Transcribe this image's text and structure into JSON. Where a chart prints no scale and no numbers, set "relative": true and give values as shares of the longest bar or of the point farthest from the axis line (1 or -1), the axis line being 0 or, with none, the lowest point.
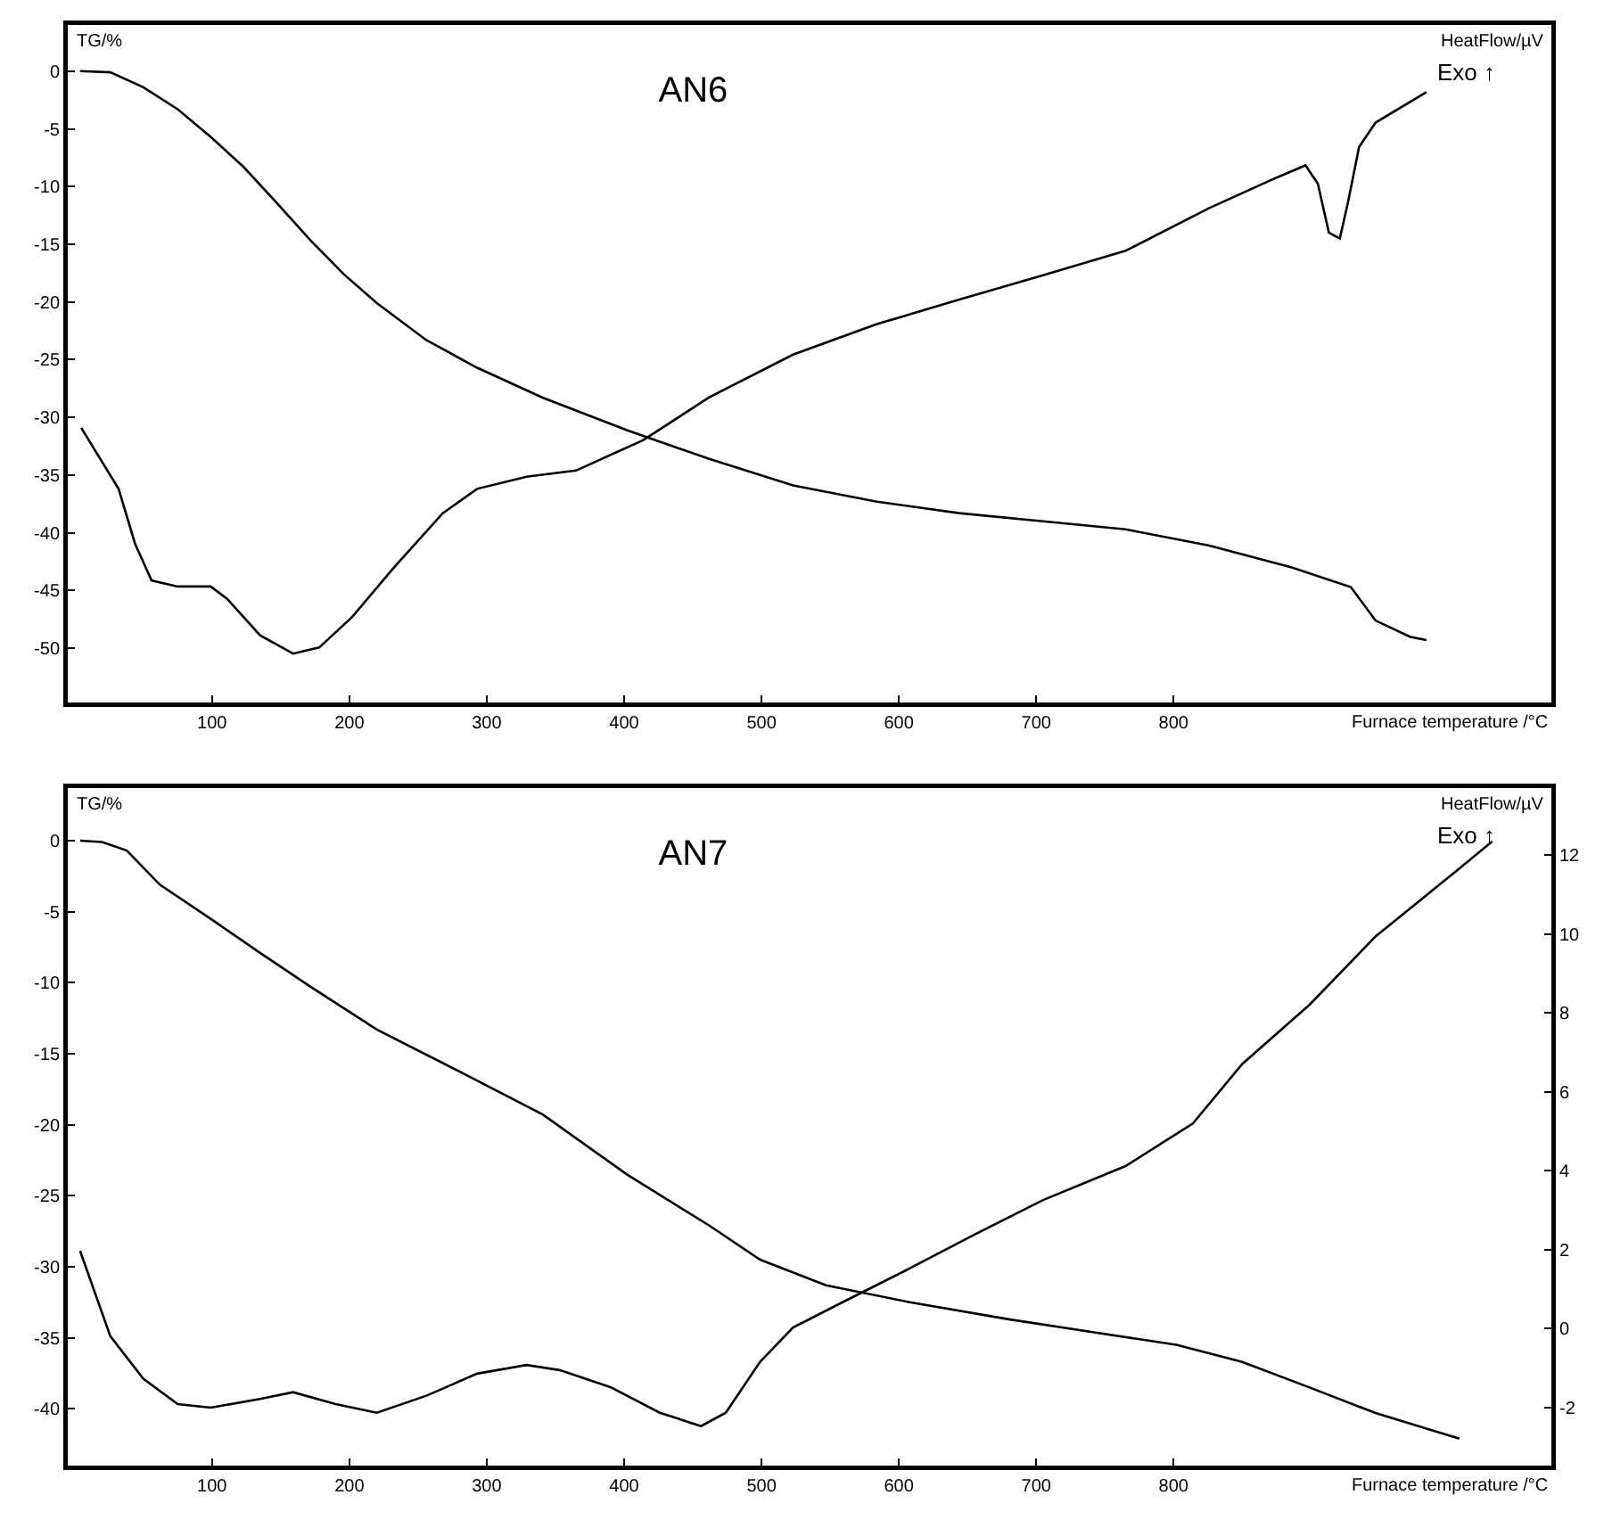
{
  "chart_data": [
    {
      "type": "line",
      "title": "AN6",
      "xlabel": "Furnace temperature /°C",
      "ylabel": "TG/%",
      "y2label": "HeatFlow/µV",
      "annotations": [
        "Exo ↑"
      ],
      "xlim": [
        -5,
        1075
      ],
      "xticks": [
        100,
        200,
        300,
        400,
        500,
        600,
        700,
        800
      ],
      "ylim": [
        -54.7,
        4
      ],
      "yticks": [
        0,
        -5,
        -10,
        -15,
        -20,
        -25,
        -30,
        -35,
        -40,
        -45,
        -50
      ],
      "marker": "none",
      "line_style": "solid",
      "series": [
        {
          "color": "#000000",
          "x": [
            4,
            26,
            50,
            75,
            99,
            123,
            147,
            172,
            196,
            220,
            256,
            293,
            341,
            402,
            462,
            523,
            584,
            644,
            705,
            765,
            826,
            886,
            929,
            947,
            972,
            984
          ],
          "values": [
            0,
            -0.1,
            -1.4,
            -3.3,
            -5.7,
            -8.3,
            -11.4,
            -14.7,
            -17.6,
            -20.1,
            -23.3,
            -25.7,
            -28.3,
            -31.1,
            -33.6,
            -35.9,
            -37.3,
            -38.3,
            -39,
            -39.7,
            -41.1,
            -43,
            -44.7,
            -47.6,
            -49,
            -49.3
          ]
        }
      ]
    },
    {
      "type": "line",
      "relative": true,
      "xlim": [
        -5,
        1075
      ],
      "tick_labels": false,
      "marker": "none",
      "line_style": "solid",
      "series": [
        {
          "color": "#000000",
          "x": [
            4.8,
            32,
            44,
            56,
            75,
            99,
            111,
            135,
            159,
            178,
            202,
            232,
            268,
            293,
            329,
            365,
            414,
            462,
            523,
            584,
            644,
            705,
            765,
            826,
            875,
            896,
            905,
            913,
            921,
            927,
            935,
            947,
            984
          ],
          "values": [
            0.45,
            0.35,
            0.26,
            0.2,
            0.19,
            0.19,
            0.17,
            0.11,
            0.08,
            0.09,
            0.14,
            0.22,
            0.31,
            0.35,
            0.37,
            0.38,
            0.43,
            0.5,
            0.57,
            0.62,
            0.66,
            0.7,
            0.74,
            0.81,
            0.86,
            0.88,
            0.85,
            0.77,
            0.76,
            0.82,
            0.91,
            0.95,
            1
          ]
        }
      ]
    },
    {
      "type": "line",
      "title": "AN7",
      "xlabel": "Furnace temperature /°C",
      "ylabel": "TG/%",
      "y2label": "HeatFlow/µV",
      "annotations": [
        "Exo ↑"
      ],
      "xlim": [
        -5,
        1075
      ],
      "xticks": [
        100,
        200,
        300,
        400,
        500,
        600,
        700,
        800
      ],
      "ylim": [
        -44,
        3.7
      ],
      "yticks": [
        0,
        -5,
        -10,
        -15,
        -20,
        -25,
        -30,
        -35,
        -40
      ],
      "y2lim": [
        -3.47,
        13.7
      ],
      "y2ticks": [
        12,
        10,
        8,
        6,
        4,
        2,
        0,
        -2
      ],
      "marker": "none",
      "line_style": "solid",
      "series": [
        {
          "color": "#000000",
          "x": [
            4,
            20,
            38,
            62,
            99,
            135,
            172,
            220,
            281,
            341,
            402,
            462,
            499,
            547,
            608,
            680,
            741,
            802,
            850,
            899,
            947,
            1008
          ],
          "values": [
            0,
            -0.1,
            -0.7,
            -3.1,
            -5.5,
            -7.9,
            -10.3,
            -13.3,
            -16.3,
            -19.3,
            -23.5,
            -27.1,
            -29.5,
            -31.3,
            -32.5,
            -33.7,
            -34.6,
            -35.5,
            -36.7,
            -38.5,
            -40.3,
            -42.1
          ]
        },
        {
          "color": "#000000",
          "axis": "y2",
          "x": [
            4,
            26,
            50,
            75,
            99,
            135,
            159,
            190,
            220,
            256,
            293,
            329,
            353,
            390,
            426,
            456,
            474,
            499,
            523,
            559,
            608,
            656,
            705,
            765,
            814,
            850,
            899,
            947,
            1008,
            1032
          ],
          "values": [
            1.97,
            -0.19,
            -1.27,
            -1.91,
            -2,
            -1.78,
            -1.61,
            -1.91,
            -2.13,
            -1.7,
            -1.14,
            -0.92,
            -1.05,
            -1.48,
            -2.13,
            -2.47,
            -2.13,
            -0.84,
            0.03,
            0.67,
            1.53,
            2.4,
            3.26,
            4.12,
            5.2,
            6.71,
            8.21,
            9.94,
            11.66,
            12.35
          ]
        }
      ]
    }
  ]
}
